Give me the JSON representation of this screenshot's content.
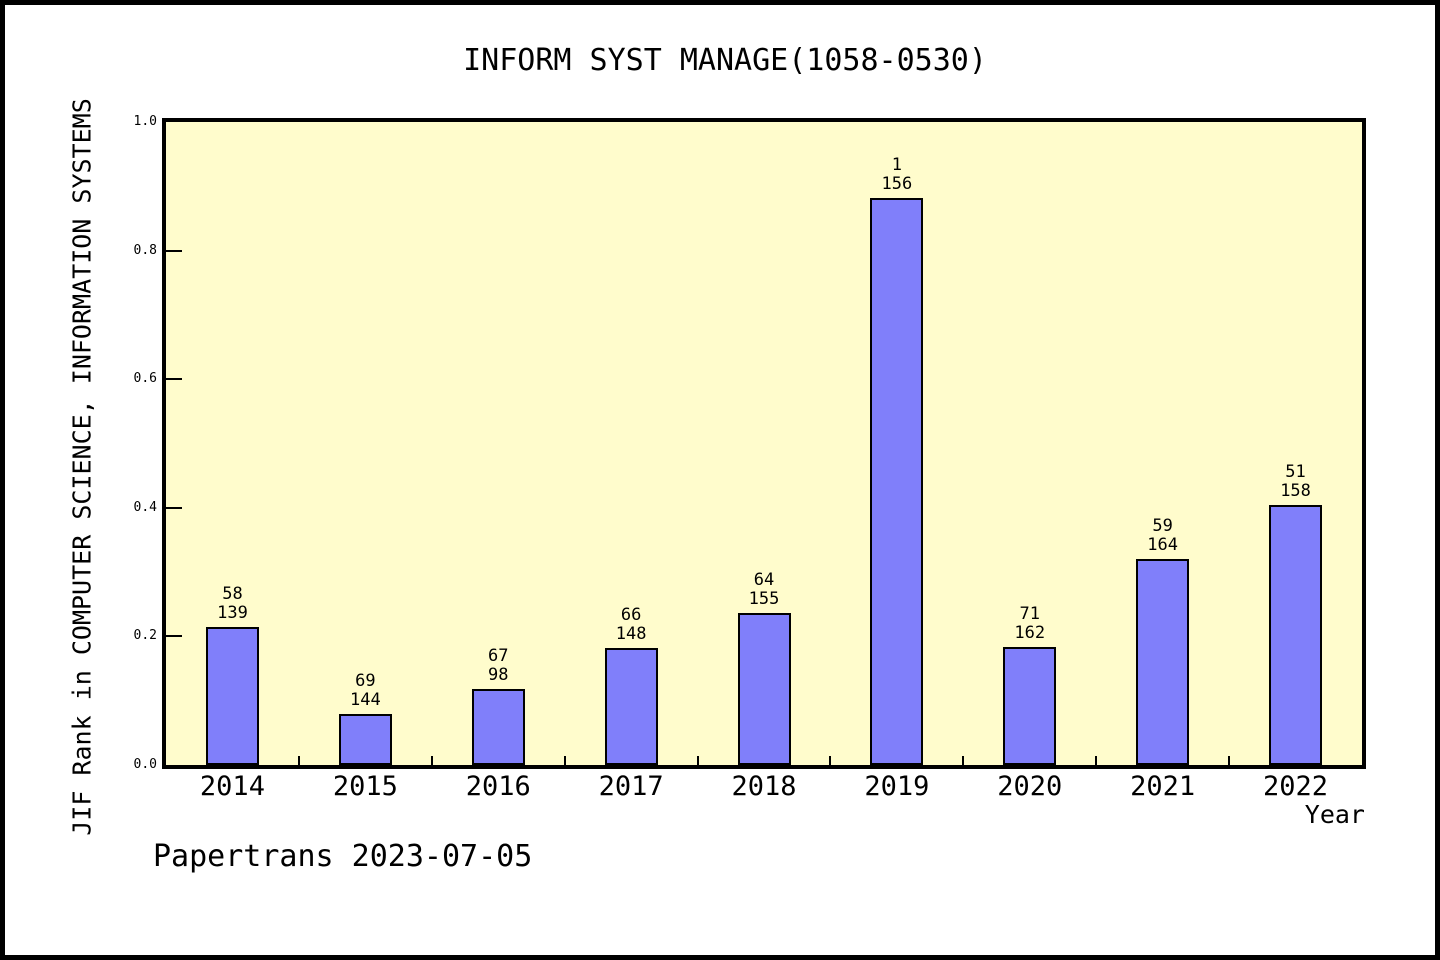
{
  "title": "INFORM SYST MANAGE(1058-0530)",
  "footer": {
    "text": "Papertrans 2023-07-05"
  },
  "colors": {
    "bar_fill": "#807FFA",
    "bar_border": "#000000",
    "plot_bg": "#FFFCCC",
    "frame": "#000000",
    "page_bg": "#FFFFFF",
    "text": "#000000"
  },
  "chart_data": {
    "type": "bar",
    "title": "INFORM SYST MANAGE(1058-0530)",
    "xlabel": "Year",
    "ylabel": "JIF Rank in COMPUTER SCIENCE, INFORMATION SYSTEMS",
    "ylim": [
      0.0,
      1.0
    ],
    "yticks": [
      0.0,
      0.2,
      0.4,
      0.6,
      0.8,
      1.0
    ],
    "ytick_labels": [
      "0.0",
      "0.2",
      "0.4",
      "0.6",
      "0.8",
      "1.0"
    ],
    "grid": false,
    "legend": null,
    "categories": [
      "2014",
      "2015",
      "2016",
      "2017",
      "2018",
      "2019",
      "2020",
      "2021",
      "2022"
    ],
    "values": [
      0.215,
      0.079,
      0.118,
      0.182,
      0.236,
      0.882,
      0.184,
      0.32,
      0.404
    ],
    "bar_top_labels": [
      "58",
      "69",
      "67",
      "66",
      "64",
      "1",
      "71",
      "59",
      "51"
    ],
    "bar_bottom_labels": [
      "139",
      "144",
      "98",
      "148",
      "155",
      "156",
      "162",
      "164",
      "158"
    ]
  }
}
